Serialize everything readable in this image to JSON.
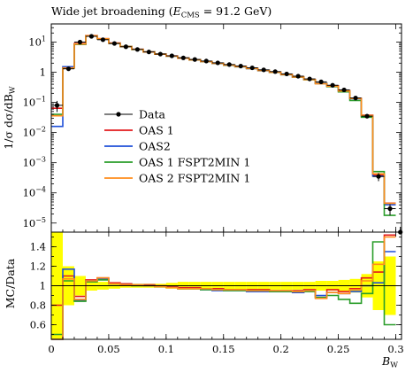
{
  "chart_data": {
    "type": "line",
    "title_main": "Wide jet broadening (",
    "title_sym": "E",
    "title_sub": "CMS",
    "title_rest": " = 91.2 GeV)",
    "ylabel": "1/σ dσ/dB",
    "ylabel_sub": "W",
    "xlabel": "B",
    "xlabel_sub": "W",
    "ratio_ylabel": "MC/Data",
    "xlim": [
      0,
      0.305
    ],
    "ylim_log": [
      5e-06,
      40
    ],
    "ratio_ylim": [
      0.45,
      1.55
    ],
    "x_ticks": [
      0,
      0.05,
      0.1,
      0.15,
      0.2,
      0.25,
      0.3
    ],
    "x_tick_labels": [
      "0",
      "0.05",
      "0.1",
      "0.15",
      "0.2",
      "0.25",
      "0.3"
    ],
    "y_ticks": [
      10,
      1,
      0.1,
      0.01,
      0.001,
      0.0001,
      1e-05
    ],
    "y_tick_mantissa": [
      "10",
      "10",
      "10",
      "10",
      "10",
      "10",
      "10"
    ],
    "y_tick_exp": [
      "1",
      "",
      "−1",
      "−2",
      "−3",
      "−4",
      "−5"
    ],
    "y_tick_plain": [
      "",
      "1",
      "",
      "",
      "",
      "",
      ""
    ],
    "ratio_y_ticks": [
      0.6,
      0.8,
      1,
      1.2,
      1.4
    ],
    "ratio_y_tick_labels": [
      "0.6",
      "0.8",
      "1",
      "1.2",
      "1.4"
    ],
    "bins": [
      0,
      0.01,
      0.02,
      0.03,
      0.04,
      0.05,
      0.06,
      0.07,
      0.08,
      0.09,
      0.1,
      0.11,
      0.12,
      0.13,
      0.14,
      0.15,
      0.16,
      0.17,
      0.18,
      0.19,
      0.2,
      0.21,
      0.22,
      0.23,
      0.24,
      0.25,
      0.26,
      0.27,
      0.28,
      0.29,
      0.3
    ],
    "data": {
      "name": "Data",
      "color": "#000000",
      "x": [
        0.005,
        0.015,
        0.025,
        0.035,
        0.045,
        0.055,
        0.065,
        0.075,
        0.085,
        0.095,
        0.105,
        0.115,
        0.125,
        0.135,
        0.145,
        0.155,
        0.165,
        0.175,
        0.185,
        0.195,
        0.205,
        0.215,
        0.225,
        0.235,
        0.245,
        0.255,
        0.265,
        0.275,
        0.285,
        0.295,
        0.304
      ],
      "y": [
        0.08,
        1.3,
        10,
        15.5,
        12,
        9,
        7,
        5.7,
        4.7,
        4,
        3.5,
        3,
        2.65,
        2.35,
        2.05,
        1.8,
        1.6,
        1.4,
        1.2,
        1.05,
        0.88,
        0.74,
        0.6,
        0.48,
        0.37,
        0.26,
        0.14,
        0.035,
        0.00035,
        3e-05,
        5e-06
      ],
      "yerr_rel": [
        0.4,
        0.08,
        0.03,
        0.02,
        0.02,
        0.02,
        0.02,
        0.02,
        0.02,
        0.02,
        0.03,
        0.03,
        0.03,
        0.03,
        0.03,
        0.03,
        0.03,
        0.03,
        0.03,
        0.03,
        0.03,
        0.03,
        0.03,
        0.04,
        0.04,
        0.05,
        0.06,
        0.08,
        0.3,
        0.4,
        0.5
      ],
      "ratio_band": [
        0.55,
        0.2,
        0.1,
        0.05,
        0.04,
        0.03,
        0.02,
        0.02,
        0.02,
        0.02,
        0.03,
        0.04,
        0.04,
        0.04,
        0.04,
        0.04,
        0.04,
        0.04,
        0.04,
        0.04,
        0.04,
        0.04,
        0.04,
        0.05,
        0.05,
        0.06,
        0.07,
        0.12,
        0.25,
        0.3
      ]
    },
    "series": [
      {
        "name": "OAS 1",
        "color": "#e31a1c",
        "ratio": [
          0.8,
          1.1,
          0.89,
          1.06,
          1.08,
          1.03,
          1.02,
          1.01,
          1.01,
          1.0,
          0.99,
          0.98,
          0.98,
          0.97,
          0.97,
          0.96,
          0.96,
          0.96,
          0.96,
          0.95,
          0.95,
          0.95,
          0.96,
          0.88,
          0.96,
          0.94,
          0.97,
          1.08,
          1.14,
          1.52
        ]
      },
      {
        "name": "OAS2",
        "color": "#1f4fd8",
        "ratio": [
          0.2,
          1.17,
          0.85,
          1.05,
          1.07,
          1.02,
          1.01,
          1.01,
          1.0,
          0.99,
          0.98,
          0.97,
          0.97,
          0.96,
          0.95,
          0.95,
          0.95,
          0.94,
          0.94,
          0.94,
          0.94,
          0.93,
          0.95,
          0.9,
          0.93,
          0.92,
          0.94,
          1.0,
          1.03,
          1.35
        ]
      },
      {
        "name": "OAS 1 FSPT2MIN 1",
        "color": "#2a9d2a",
        "ratio": [
          0.5,
          1.05,
          0.84,
          1.04,
          1.06,
          1.02,
          1.01,
          1.0,
          1.0,
          0.99,
          0.98,
          0.97,
          0.97,
          0.96,
          0.96,
          0.95,
          0.95,
          0.95,
          0.95,
          0.94,
          0.94,
          0.94,
          0.94,
          0.88,
          0.9,
          0.86,
          0.82,
          0.92,
          1.45,
          0.6
        ]
      },
      {
        "name": "OAS 2 FSPT2MIN 1",
        "color": "#ff8c1a",
        "ratio": [
          0.45,
          1.07,
          0.86,
          1.05,
          1.08,
          1.02,
          1.01,
          1.01,
          1.0,
          0.99,
          0.98,
          0.97,
          0.97,
          0.97,
          0.96,
          0.96,
          0.96,
          0.95,
          0.95,
          0.95,
          0.95,
          0.94,
          0.95,
          0.87,
          0.93,
          0.92,
          0.96,
          1.05,
          1.22,
          1.5
        ]
      }
    ],
    "legend_placement": "center-left",
    "grid": false
  }
}
